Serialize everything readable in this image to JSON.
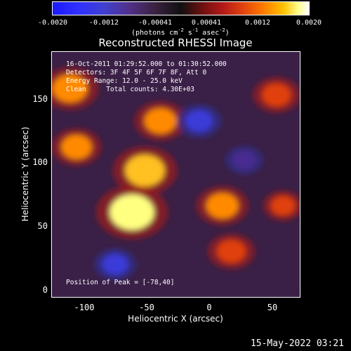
{
  "colorbar": {
    "ticks": [
      "-0.0020",
      "-0.0012",
      "-0.00041",
      "0.00041",
      "0.0012",
      "0.0020"
    ],
    "unit": {
      "pre": "(photons cm",
      "exp1": "-2",
      "mid1": " s",
      "exp2": "-1",
      "mid2": " asec",
      "exp3": "-2",
      "post": ")"
    }
  },
  "title": "Reconstructed RHESSI Image",
  "info": {
    "line1": "16-Oct-2011 01:29:52.000 to 01:30:52.000",
    "line2": "Detectors: 3F 4F 5F 6F 7F 8F, Att 0",
    "line3": "Energy Range: 12.0 - 25.0 keV",
    "line4": "Clean     Total counts: 4.30E+03",
    "peak": "Position of Peak = [-78,40]"
  },
  "timestamp": "15-May-2022 03:21",
  "chart_data": {
    "type": "heatmap",
    "title": "Reconstructed RHESSI Image",
    "xlabel": "Heliocentric X (arcsec)",
    "ylabel": "Heliocentric Y (arcsec)",
    "xlim": [
      -124,
      68
    ],
    "ylim": [
      -5,
      183
    ],
    "xticks": [
      -100,
      -50,
      0,
      50
    ],
    "xtick_labels": [
      "-100",
      "-50",
      "0",
      "50"
    ],
    "yticks": [
      0,
      50,
      100,
      150
    ],
    "ytick_labels": [
      "0",
      "50",
      "100",
      "150"
    ],
    "colorbar_range": [
      -0.002,
      0.002
    ],
    "peak_position": [
      -78,
      40
    ],
    "sources": [
      {
        "x": -62,
        "y": 60,
        "value": 0.002
      },
      {
        "x": -52,
        "y": 92,
        "value": 0.0017
      },
      {
        "x": -40,
        "y": 130,
        "value": 0.0012
      },
      {
        "x": -105,
        "y": 110,
        "value": 0.0011
      },
      {
        "x": -110,
        "y": 155,
        "value": 0.0014
      },
      {
        "x": 8,
        "y": 65,
        "value": 0.0012
      },
      {
        "x": 15,
        "y": 30,
        "value": 0.001
      },
      {
        "x": 50,
        "y": 150,
        "value": 0.001
      },
      {
        "x": 55,
        "y": 65,
        "value": 0.0007
      },
      {
        "x": -75,
        "y": 20,
        "value": -0.0008
      },
      {
        "x": -10,
        "y": 130,
        "value": -0.0009
      },
      {
        "x": 25,
        "y": 100,
        "value": -0.0006
      }
    ],
    "grid": false
  }
}
